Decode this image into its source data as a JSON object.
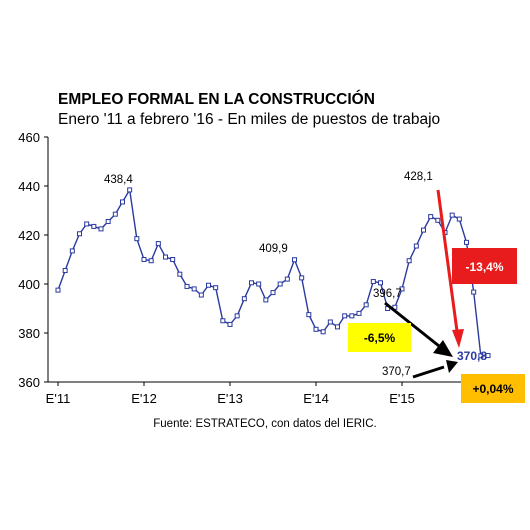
{
  "title": "EMPLEO FORMAL EN LA CONSTRUCCIÓN",
  "subtitle": "Enero '11 a febrero '16 - En miles de puestos de trabajo",
  "source": "Fuente: ESTRATECO, con datos del IERIC.",
  "chart_data": {
    "type": "line",
    "title": "EMPLEO FORMAL EN LA CONSTRUCCIÓN",
    "subtitle": "Enero '11 a febrero '16 - En miles de puestos de trabajo",
    "x_tick_labels": [
      "E'11",
      "E'12",
      "E'13",
      "E'14",
      "E'15",
      "E'16"
    ],
    "y_ticks": [
      360,
      380,
      400,
      420,
      440,
      460
    ],
    "ylim": [
      360,
      460
    ],
    "grid": false,
    "color": "#2a3aa0",
    "series": [
      {
        "values": [
          397.5,
          405.5,
          413.5,
          420.5,
          424.5,
          423.5,
          422.5,
          425.5,
          428.5,
          433.5,
          438.4,
          418.5,
          410.0,
          409.5,
          416.5,
          411.0,
          410.0,
          404.0,
          399.0,
          398.0,
          395.5,
          399.5,
          398.5,
          385.0,
          383.5,
          387.0,
          394.0,
          400.5,
          400.0,
          393.5,
          396.5,
          400.0,
          402.0,
          409.9,
          402.5,
          387.5,
          381.5,
          380.5,
          384.5,
          382.5,
          387.0,
          387.0,
          388.0,
          391.5,
          401.0,
          400.5,
          390.0,
          390.5,
          398.0,
          409.5,
          415.5,
          422.0,
          427.5,
          426.0,
          421.0,
          428.1,
          426.5,
          417.0,
          396.7,
          370.7,
          370.8
        ]
      }
    ],
    "annotations": [
      {
        "label": "438,4"
      },
      {
        "label": "409,9"
      },
      {
        "label": "428,1"
      },
      {
        "label": "396,7"
      },
      {
        "label": "370,7"
      },
      {
        "label": "370,8"
      }
    ],
    "callouts": [
      {
        "label": "-6,5%",
        "bg": "#ffff00",
        "text_color": "#000000"
      },
      {
        "label": "-13,4%",
        "bg": "#e81c1c",
        "text_color": "#ffffff"
      },
      {
        "label": "+0,04%",
        "bg": "#ffbf00",
        "text_color": "#000000"
      }
    ]
  }
}
